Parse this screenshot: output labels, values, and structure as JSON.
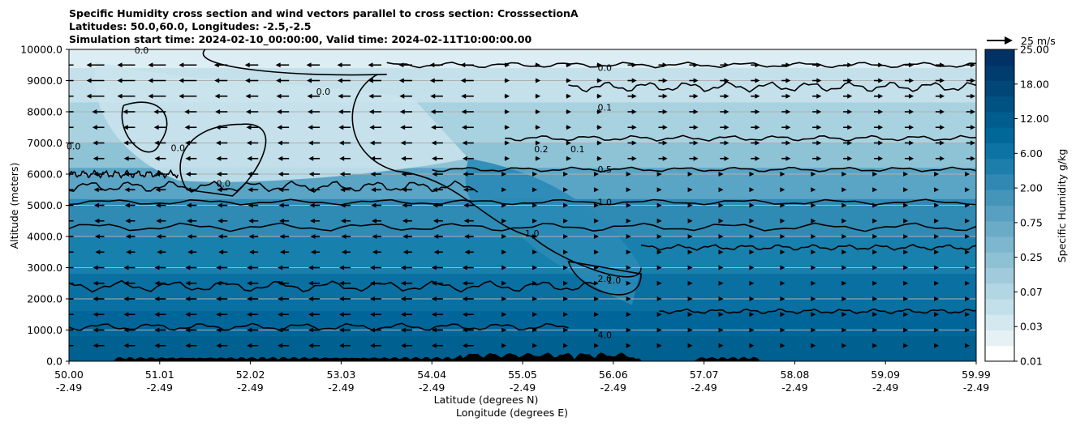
{
  "chart_data": {
    "type": "heatmap",
    "title_lines": [
      "Specific Humidity cross section and wind vectors parallel to cross section: CrosssectionA",
      "Latitudes: 50.0,60.0, Longitudes: -2.5,-2.5",
      "Simulation start time: 2024-02-10_00:00:00, Valid time: 2024-02-11T10:00:00.00"
    ],
    "ylabel": "Altitude (meters)",
    "xlabel_lat": "Latitude (degrees N)",
    "xlabel_lon": "Longitude (degrees E)",
    "y_ticks": [
      "0.0",
      "1000.0",
      "2000.0",
      "3000.0",
      "4000.0",
      "5000.0",
      "6000.0",
      "7000.0",
      "8000.0",
      "9000.0",
      "10000.0"
    ],
    "ylim": [
      0,
      10000
    ],
    "xlim": [
      50.0,
      59.99
    ],
    "x_ticks": [
      {
        "lat": "50.00",
        "lon": "-2.49"
      },
      {
        "lat": "51.01",
        "lon": "-2.49"
      },
      {
        "lat": "52.02",
        "lon": "-2.49"
      },
      {
        "lat": "53.03",
        "lon": "-2.49"
      },
      {
        "lat": "54.04",
        "lon": "-2.49"
      },
      {
        "lat": "55.05",
        "lon": "-2.49"
      },
      {
        "lat": "56.06",
        "lon": "-2.49"
      },
      {
        "lat": "57.07",
        "lon": "-2.49"
      },
      {
        "lat": "58.08",
        "lon": "-2.49"
      },
      {
        "lat": "59.09",
        "lon": "-2.49"
      },
      {
        "lat": "59.99",
        "lon": "-2.49"
      }
    ],
    "grid": "horizontal",
    "colorbar": {
      "label": "Specific Humidity g/kg",
      "tick_labels": [
        "0.01",
        "0.03",
        "0.07",
        "0.25",
        "0.75",
        "2.00",
        "6.00",
        "12.00",
        "18.00",
        "25.00"
      ],
      "colors": [
        "#ffffff",
        "#e6f1f5",
        "#d4e8ef",
        "#c3dfe9",
        "#b2d6e3",
        "#a1cbdc",
        "#8fc1d5",
        "#7db6cf",
        "#6aabc8",
        "#57a0c1",
        "#4595ba",
        "#3189b3",
        "#1e7eab",
        "#0c73a4",
        "#006899",
        "#005d8d",
        "#005282",
        "#004777",
        "#003c6d",
        "#013165"
      ]
    },
    "contour_labels": [
      {
        "text": "0.0",
        "lat": 55.9,
        "alt": 9420
      },
      {
        "text": "0.0",
        "lat": 50.8,
        "alt": 9980
      },
      {
        "text": "0.0",
        "lat": 52.8,
        "alt": 8650
      },
      {
        "text": "0.0",
        "lat": 51.2,
        "alt": 6850
      },
      {
        "text": "0.0",
        "lat": 51.7,
        "alt": 5700
      },
      {
        "text": "0.0",
        "lat": 50.05,
        "alt": 6900
      },
      {
        "text": "0.1",
        "lat": 55.9,
        "alt": 8140
      },
      {
        "text": "0.1",
        "lat": 55.6,
        "alt": 6800
      },
      {
        "text": "0.2",
        "lat": 55.2,
        "alt": 6800
      },
      {
        "text": "0.5",
        "lat": 55.9,
        "alt": 6150
      },
      {
        "text": "1.0",
        "lat": 55.9,
        "alt": 5100
      },
      {
        "text": "1.0",
        "lat": 55.1,
        "alt": 4100
      },
      {
        "text": "1.0",
        "lat": 56.0,
        "alt": 2600
      },
      {
        "text": "2.0",
        "lat": 55.9,
        "alt": 2650
      },
      {
        "text": "4.0",
        "lat": 55.9,
        "alt": 850
      }
    ],
    "wind_legend": "25 m/s"
  }
}
